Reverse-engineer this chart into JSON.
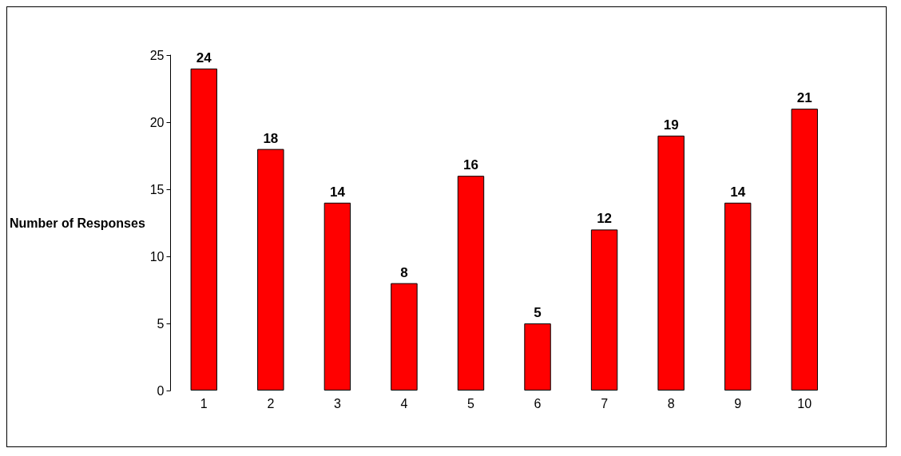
{
  "chart_data": {
    "type": "bar",
    "ylabel": "Number of Responses",
    "categories": [
      "1",
      "2",
      "3",
      "4",
      "5",
      "6",
      "7",
      "8",
      "9",
      "10"
    ],
    "values": [
      24,
      18,
      14,
      8,
      16,
      5,
      12,
      19,
      14,
      21
    ],
    "color": "#ff0000",
    "ylim": [
      0,
      25
    ],
    "yticks": [
      0,
      5,
      10,
      15,
      20,
      25
    ],
    "grid": false,
    "data_labels": true
  }
}
